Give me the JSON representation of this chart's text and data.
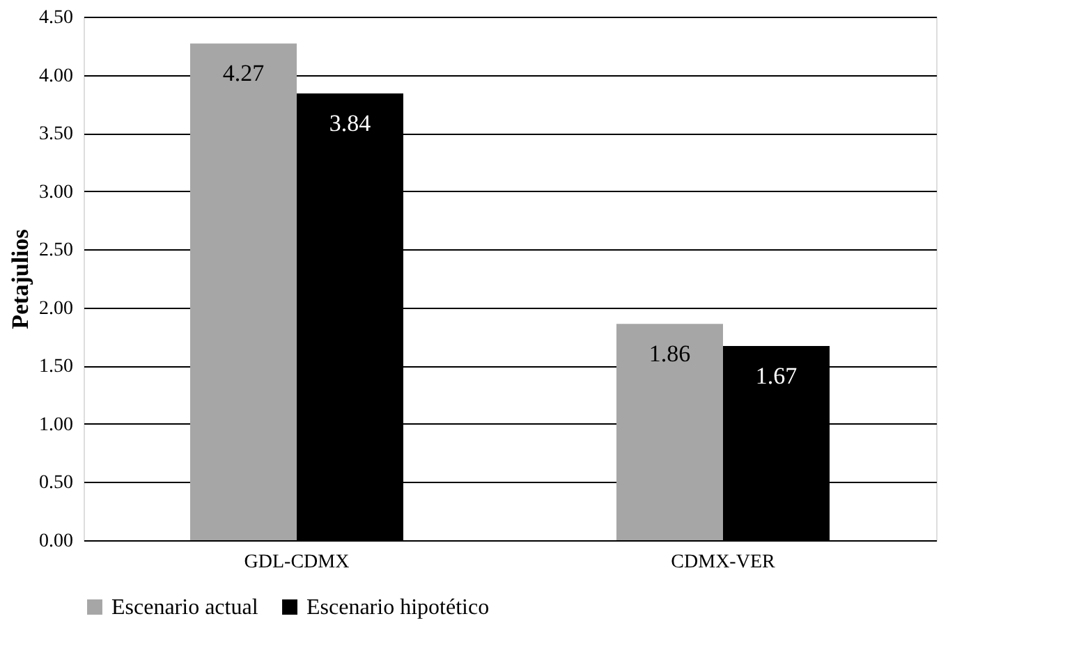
{
  "chart_data": {
    "type": "bar",
    "ylabel": "Petajulios",
    "categories": [
      "GDL-CDMX",
      "CDMX-VER"
    ],
    "series": [
      {
        "name": "Escenario actual",
        "color": "#a6a6a6",
        "values": [
          4.27,
          1.86
        ]
      },
      {
        "name": "Escenario hipotético",
        "color": "#000000",
        "values": [
          3.84,
          1.67
        ]
      }
    ],
    "ylim": [
      0,
      4.5
    ],
    "yticks": [
      {
        "value": 0,
        "label": "0.00"
      },
      {
        "value": 0.5,
        "label": "0.50"
      },
      {
        "value": 1,
        "label": "1.00"
      },
      {
        "value": 1.5,
        "label": "1.50"
      },
      {
        "value": 2,
        "label": "2.00"
      },
      {
        "value": 2.5,
        "label": "2.50"
      },
      {
        "value": 3,
        "label": "3.00"
      },
      {
        "value": 3.5,
        "label": "3.50"
      },
      {
        "value": 4,
        "label": "4.00"
      },
      {
        "value": 4.5,
        "label": "4.50"
      }
    ],
    "grid": "y",
    "legend": "bottom",
    "data_labels": true
  }
}
